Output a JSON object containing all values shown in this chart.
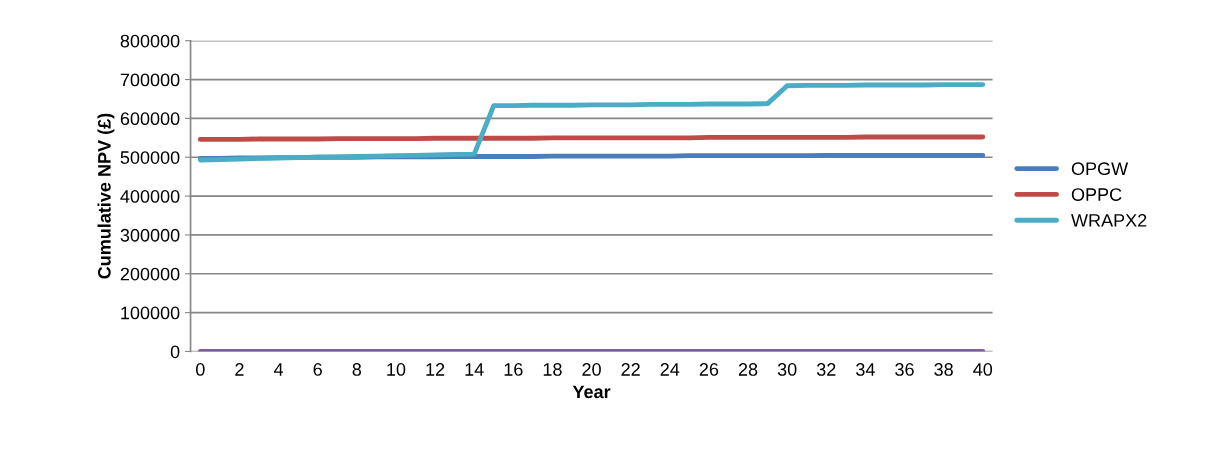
{
  "chart_data": {
    "type": "line",
    "xlabel": "Year",
    "ylabel": "Cumulative NPV (£)",
    "categories": [
      "0",
      null,
      "2",
      null,
      "4",
      null,
      "6",
      null,
      "8",
      null,
      "10",
      null,
      "12",
      null,
      "14",
      null,
      "16",
      null,
      "18",
      null,
      "20",
      null,
      "22",
      null,
      "24",
      null,
      "26",
      null,
      "28",
      null,
      "30",
      null,
      "32",
      null,
      "34",
      null,
      "36",
      null,
      "38",
      null,
      "40"
    ],
    "series": [
      {
        "name": "OPGW",
        "color": "#4a7ebb",
        "values": [
          497000,
          497000,
          498000,
          498000,
          499000,
          499000,
          500000,
          500000,
          500000,
          501000,
          501000,
          501000,
          501000,
          502000,
          502000,
          502000,
          502000,
          502000,
          503000,
          503000,
          503000,
          503000,
          503000,
          503000,
          503000,
          504000,
          504000,
          504000,
          504000,
          504000,
          504000,
          504000,
          505000,
          505000,
          505000,
          505000,
          505000,
          505000,
          505000,
          505000,
          505000
        ]
      },
      {
        "name": "OPPC",
        "color": "#be4b48",
        "values": [
          546000,
          546000,
          546000,
          547000,
          547000,
          547000,
          547000,
          548000,
          548000,
          548000,
          548000,
          548000,
          549000,
          549000,
          549000,
          549000,
          549000,
          549000,
          550000,
          550000,
          550000,
          550000,
          550000,
          550000,
          550000,
          550000,
          551000,
          551000,
          551000,
          551000,
          551000,
          551000,
          551000,
          551000,
          552000,
          552000,
          552000,
          552000,
          552000,
          552000,
          552000
        ]
      },
      {
        "name": "WRAPX2",
        "color": "#4bacc6",
        "values": [
          493000,
          494000,
          495000,
          497000,
          498000,
          499000,
          500000,
          501000,
          502000,
          503000,
          504000,
          505000,
          506000,
          507000,
          508000,
          633000,
          633000,
          634000,
          634000,
          634000,
          635000,
          635000,
          635000,
          636000,
          636000,
          636000,
          637000,
          637000,
          637000,
          638000,
          684000,
          685000,
          685000,
          685000,
          686000,
          686000,
          686000,
          686000,
          687000,
          687000,
          687000
        ]
      },
      {
        "color": "#7d5fa0",
        "values": [
          0,
          0,
          0,
          0,
          0,
          0,
          0,
          0,
          0,
          0,
          0,
          0,
          0,
          0,
          0,
          0,
          0,
          0,
          0,
          0,
          0,
          0,
          0,
          0,
          0,
          0,
          0,
          0,
          0,
          0,
          0,
          0,
          0,
          0,
          0,
          0,
          0,
          0,
          0,
          0,
          0
        ]
      }
    ],
    "ylim": [
      0,
      800000
    ],
    "yticks": [
      0,
      100000,
      200000,
      300000,
      400000,
      500000,
      600000,
      700000,
      800000
    ],
    "grid": "y",
    "legend": "right",
    "marker": "none",
    "line_style": "solid"
  }
}
